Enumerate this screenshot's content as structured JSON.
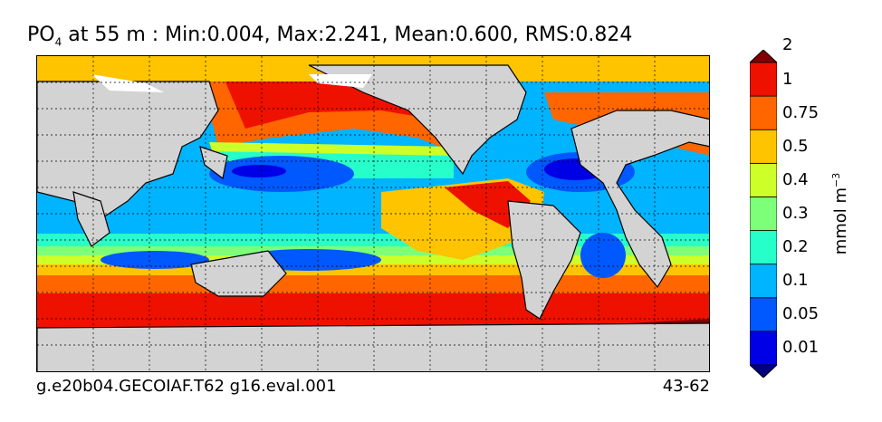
{
  "title": {
    "variable": "PO",
    "subscript": "4",
    "rest": " at 55 m : Min:0.004, Max:2.241, Mean:0.600, RMS:0.824"
  },
  "footer": {
    "left": "g.e20b04.GECOIAF.T62 g16.eval.001",
    "right": "43-62"
  },
  "colorbar": {
    "unit_base": "mmol m",
    "unit_exp": "−3",
    "levels": [
      "0.01",
      "0.05",
      "0.1",
      "0.2",
      "0.3",
      "0.4",
      "0.5",
      "0.75",
      "1",
      "2"
    ],
    "colors": [
      "#00007f",
      "#0000e6",
      "#0058ff",
      "#00b4ff",
      "#26ffc9",
      "#7dff7a",
      "#cdff29",
      "#ffc400",
      "#ff6600",
      "#ee1100",
      "#7f0000"
    ]
  },
  "map": {
    "land_color": "#d3d3d3",
    "grid": true,
    "sea_ice_color": "#ffffff"
  }
}
